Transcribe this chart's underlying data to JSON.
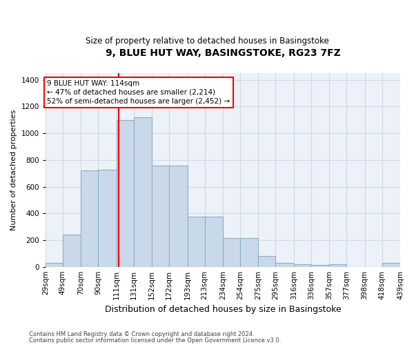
{
  "title": "9, BLUE HUT WAY, BASINGSTOKE, RG23 7FZ",
  "subtitle": "Size of property relative to detached houses in Basingstoke",
  "xlabel": "Distribution of detached houses by size in Basingstoke",
  "ylabel": "Number of detached properties",
  "footnote1": "Contains HM Land Registry data © Crown copyright and database right 2024.",
  "footnote2": "Contains public sector information licensed under the Open Government Licence v3.0.",
  "annotation_line1": "9 BLUE HUT WAY: 114sqm",
  "annotation_line2": "← 47% of detached houses are smaller (2,214)",
  "annotation_line3": "52% of semi-detached houses are larger (2,452) →",
  "property_size": 114,
  "bar_color": "#c9d9ea",
  "bar_edge_color": "#8aafc8",
  "vline_color": "red",
  "background_color": "#edf1f8",
  "grid_color": "#d0d8e8",
  "bins": [
    29,
    49,
    70,
    90,
    111,
    131,
    152,
    172,
    193,
    213,
    234,
    254,
    275,
    295,
    316,
    336,
    357,
    377,
    398,
    418,
    439
  ],
  "counts": [
    28,
    240,
    720,
    725,
    1100,
    1120,
    760,
    760,
    375,
    375,
    215,
    215,
    80,
    28,
    20,
    15,
    18,
    0,
    0,
    28
  ],
  "ylim": [
    0,
    1450
  ],
  "yticks": [
    0,
    200,
    400,
    600,
    800,
    1000,
    1200,
    1400
  ],
  "title_fontsize": 10,
  "subtitle_fontsize": 8.5,
  "ylabel_fontsize": 8,
  "xlabel_fontsize": 9,
  "tick_fontsize": 7.5,
  "annotation_fontsize": 7.5,
  "footnote_fontsize": 6
}
